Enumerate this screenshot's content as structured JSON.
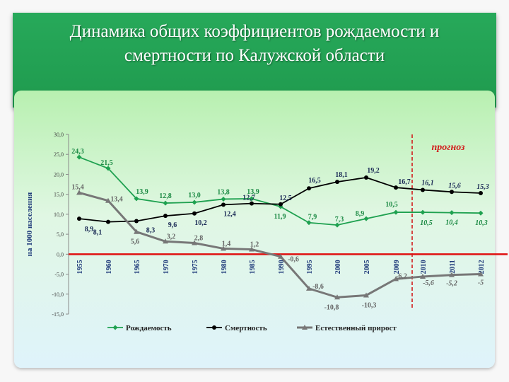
{
  "title": "Динамика общих коэффициентов рождаемости и\nсмертности по Калужской области",
  "chart_data": {
    "type": "line",
    "ylabel": "на 1000 населения",
    "ylim": [
      -15,
      30
    ],
    "yticks": [
      "30,0",
      "25,0",
      "20,0",
      "15,0",
      "10,0",
      "5,0",
      "0,0",
      "-5,0",
      "-10,0",
      "-15,0"
    ],
    "categories": [
      "1955",
      "1960",
      "1965",
      "1970",
      "1975",
      "1980",
      "1985",
      "1990",
      "1995",
      "2000",
      "2005",
      "2009",
      "2010",
      "2011",
      "2012"
    ],
    "forecast_label": "прогноз",
    "forecast_from": "2010",
    "legend_position": "bottom",
    "series": [
      {
        "name": "Рождаемость",
        "color": "#1fa150",
        "marker": "diamond",
        "values": [
          24.3,
          21.5,
          13.9,
          12.8,
          13.0,
          13.8,
          13.9,
          11.9,
          7.9,
          7.3,
          8.9,
          10.5,
          10.5,
          10.4,
          10.3
        ],
        "labels": [
          "24,3",
          "21,5",
          "13,9",
          "12,8",
          "13,0",
          "13,8",
          "13,9",
          "11,9",
          "7,9",
          "7,3",
          "8,9",
          "10,5",
          "10,5",
          "10,4",
          "10,3"
        ]
      },
      {
        "name": "Смертность",
        "color": "#000000",
        "marker": "circle",
        "values": [
          8.9,
          8.1,
          8.3,
          9.6,
          10.2,
          12.4,
          12.7,
          12.5,
          16.5,
          18.1,
          19.2,
          16.7,
          16.1,
          15.6,
          15.3
        ],
        "labels": [
          "8,9",
          "8,1",
          "8,3",
          "9,6",
          "10,2",
          "12,4",
          "12,7",
          "12,5",
          "16,5",
          "18,1",
          "19,2",
          "16,7",
          "16,1",
          "15,6",
          "15,3"
        ]
      },
      {
        "name": "Естественный прирост",
        "color": "#777777",
        "marker": "triangle",
        "values": [
          15.4,
          13.4,
          5.6,
          3.2,
          2.8,
          1.4,
          1.2,
          -0.6,
          -8.6,
          -10.8,
          -10.3,
          -6.2,
          -5.6,
          -5.2,
          -5.0
        ],
        "labels": [
          "15,4",
          "13,4",
          "5,6",
          "3,2",
          "2,8",
          "1,4",
          "1,2",
          "-0,6",
          "-8,6",
          "-10,8",
          "-10,3",
          "-6,2",
          "-5,6",
          "-5,2",
          "-5"
        ]
      }
    ]
  }
}
